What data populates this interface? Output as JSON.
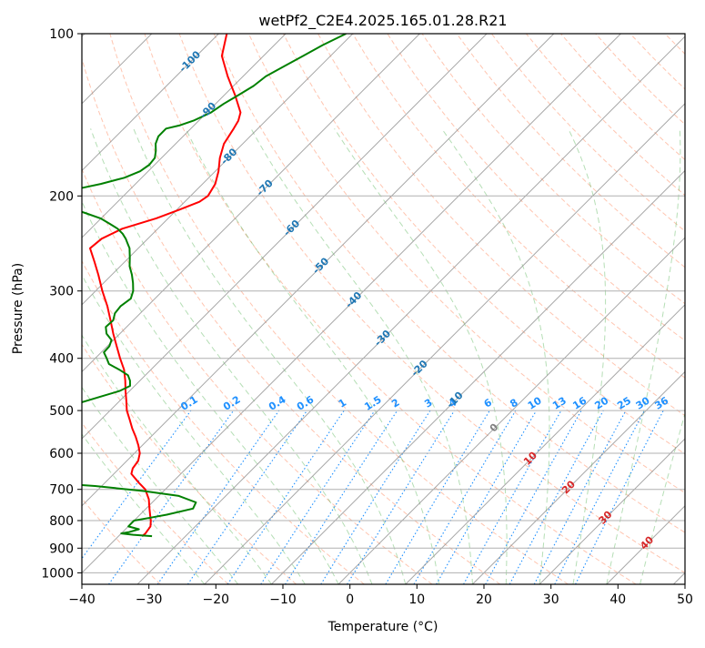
{
  "chart_data": {
    "type": "skew-t",
    "title": "wetPf2_C2E4.2025.165.01.28.R21",
    "xlabel": "Temperature (°C)",
    "ylabel": "Pressure (hPa)",
    "xlim": [
      -40,
      50
    ],
    "ylim": [
      1050,
      100
    ],
    "y_scale": "log",
    "grid": true,
    "x_ticks": [
      -40,
      -30,
      -20,
      -10,
      0,
      10,
      20,
      30,
      40,
      50
    ],
    "y_ticks": [
      100,
      200,
      300,
      400,
      500,
      600,
      700,
      800,
      900,
      1000
    ],
    "colors": {
      "temperature": "#ff0000",
      "dewpoint": "#008000",
      "isotherm_labels": "#1f77b4",
      "mixing_ratio_labels": "#1e90ff",
      "dry_adiabat": "#ff7f50",
      "moist_adiabat": "#2ca02c",
      "isotherm_lines": "#888888",
      "wet_bulb_labels": "#d62728"
    },
    "isotherm_labels": [
      {
        "label": "-100",
        "value": -100,
        "pressure": 112
      },
      {
        "label": "-90",
        "value": -90,
        "pressure": 138
      },
      {
        "label": "-80",
        "value": -80,
        "pressure": 168
      },
      {
        "label": "-70",
        "value": -70,
        "pressure": 192
      },
      {
        "label": "-60",
        "value": -60,
        "pressure": 228
      },
      {
        "label": "-50",
        "value": -50,
        "pressure": 268
      },
      {
        "label": "-40",
        "value": -40,
        "pressure": 310
      },
      {
        "label": "-30",
        "value": -30,
        "pressure": 365
      },
      {
        "label": "-20",
        "value": -20,
        "pressure": 415
      },
      {
        "label": "-10",
        "value": -10,
        "pressure": 475
      }
    ],
    "wet_bulb_labels": [
      {
        "label": "0",
        "value": 0,
        "pressure": 535
      },
      {
        "label": "10",
        "value": 10,
        "pressure": 610
      },
      {
        "label": "20",
        "value": 20,
        "pressure": 690
      },
      {
        "label": "30",
        "value": 30,
        "pressure": 785
      },
      {
        "label": "40",
        "value": 40,
        "pressure": 875
      }
    ],
    "mixing_ratio_labels": [
      "0.1",
      "0.2",
      "0.4",
      "0.6",
      "1",
      "1.5",
      "2",
      "3",
      "4",
      "6",
      "8",
      "10",
      "13",
      "16",
      "20",
      "25",
      "30",
      "36"
    ],
    "mixing_ratio_values": [
      0.1,
      0.2,
      0.4,
      0.6,
      1,
      1.5,
      2,
      3,
      4,
      6,
      8,
      10,
      13,
      16,
      20,
      25,
      30,
      36
    ],
    "series": [
      {
        "name": "temperature",
        "pressure": [
          855,
          845,
          820,
          800,
          780,
          760,
          730,
          700,
          680,
          655,
          640,
          620,
          600,
          580,
          560,
          540,
          520,
          500,
          480,
          460,
          440,
          420,
          400,
          380,
          360,
          340,
          320,
          300,
          280,
          265,
          250,
          240,
          230,
          220,
          212,
          205,
          200,
          190,
          180,
          170,
          160,
          150,
          145,
          140,
          130,
          120,
          110,
          100
        ],
        "values": [
          -36.5,
          -36.4,
          -36.7,
          -37.5,
          -38.5,
          -39.5,
          -41.0,
          -43.0,
          -45.0,
          -47.4,
          -48.0,
          -48.3,
          -49.2,
          -50.6,
          -52.2,
          -54.0,
          -55.7,
          -57.5,
          -59.0,
          -60.6,
          -62.2,
          -64.0,
          -66.3,
          -68.6,
          -71.0,
          -73.4,
          -76.0,
          -79.0,
          -82.0,
          -84.5,
          -87.2,
          -86.9,
          -85.3,
          -81.8,
          -79.6,
          -77.8,
          -77.4,
          -78.1,
          -79.5,
          -81.3,
          -82.8,
          -83.6,
          -84.1,
          -85.0,
          -88.4,
          -92.3,
          -96.2,
          -98.8
        ]
      },
      {
        "name": "dewpoint",
        "pressure": [
          855,
          850,
          845,
          840,
          830,
          820,
          810,
          800,
          790,
          780,
          760,
          740,
          720,
          705,
          690,
          680,
          670,
          660,
          650,
          640,
          630,
          620,
          610,
          605,
          600,
          590,
          580,
          570,
          560,
          550,
          540,
          530,
          520,
          510,
          500,
          490,
          480,
          470,
          460,
          450,
          440,
          430,
          420,
          410,
          400,
          390,
          380,
          370,
          360,
          350,
          340,
          330,
          320,
          310,
          300,
          290,
          280,
          270,
          260,
          250,
          245,
          240,
          235,
          230,
          225,
          220,
          215,
          210,
          207,
          205,
          203,
          200,
          195,
          190,
          185,
          180,
          175,
          170,
          165,
          160,
          155,
          150,
          148,
          145,
          140,
          135,
          130,
          125,
          120,
          115,
          110,
          105,
          100
        ],
        "values": [
          -35,
          -38,
          -40,
          -39,
          -38,
          -40,
          -40,
          -40,
          -38,
          -36,
          -33,
          -33.5,
          -37,
          -43,
          -51,
          -59,
          -67,
          -73,
          -79,
          -85,
          -86.5,
          -84,
          -81.5,
          -79.5,
          -78.5,
          -78.5,
          -78.0,
          -76.8,
          -76.2,
          -74.3,
          -73.6,
          -73.1,
          -71.2,
          -70.0,
          -69.0,
          -66.8,
          -65.0,
          -63.3,
          -61.5,
          -60.7,
          -61.5,
          -62.6,
          -64.7,
          -67.1,
          -68.3,
          -69.6,
          -69.7,
          -70.3,
          -72.0,
          -73.1,
          -73.0,
          -73.8,
          -74.0,
          -73.6,
          -74.4,
          -75.6,
          -77.0,
          -78.6,
          -79.9,
          -81.3,
          -82.3,
          -83.3,
          -84.5,
          -86.0,
          -88.0,
          -90.1,
          -93.2,
          -96.5,
          -98.7,
          -101.0,
          -103.0,
          -101.3,
          -98.6,
          -95.2,
          -92.6,
          -91.2,
          -90.8,
          -91.0,
          -91.9,
          -93.0,
          -93.7,
          -93.7,
          -92.2,
          -90.8,
          -89.4,
          -88.8,
          -87.9,
          -87.0,
          -86.6,
          -85.4,
          -84.1,
          -82.8,
          -81.0
        ]
      }
    ]
  }
}
